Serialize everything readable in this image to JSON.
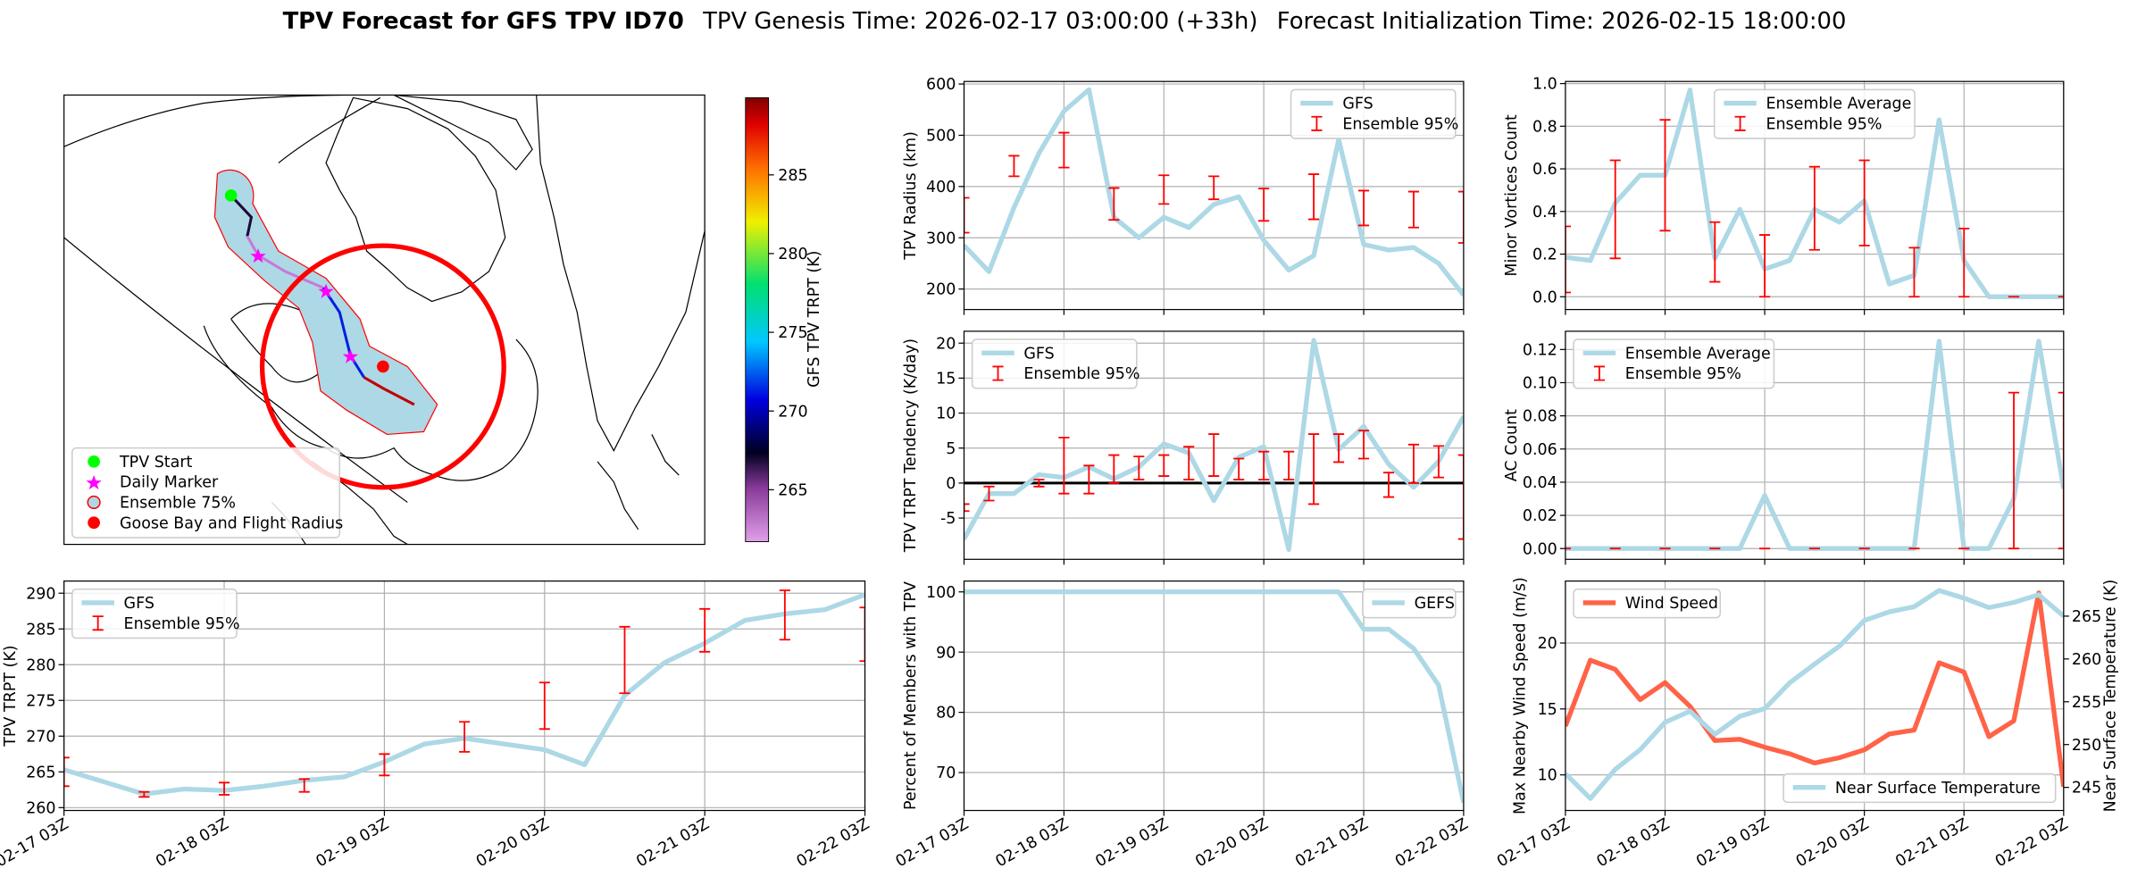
{
  "title": {
    "main": "TPV Forecast for GFS TPV ID70",
    "genesis": "TPV Genesis Time: 2026-02-17 03:00:00 (+33h)",
    "init": "Forecast Initialization Time: 2026-02-15 18:00:00"
  },
  "map": {
    "legend": [
      "TPV Start",
      "Daily Marker",
      "Ensemble 75%",
      "Goose Bay and Flight Radius"
    ],
    "colorbar": {
      "label": "GFS TPV TRPT (K)",
      "lim": [
        261.7,
        289.9
      ],
      "ticks": [
        265,
        270,
        275,
        280,
        285
      ]
    }
  },
  "chart_data": [
    {
      "type": "line",
      "ylabel": "TPV Radius (km)",
      "series": [
        {
          "name": "GFS",
          "color": "#add8e6",
          "values": [
            285,
            234,
            359,
            465,
            547,
            589,
            340,
            300,
            340,
            320,
            365,
            380,
            295,
            237,
            265,
            492,
            287,
            276,
            281,
            250,
            188
          ]
        }
      ],
      "errorbars": {
        "name": "Ensemble 95%",
        "color": "#ff0000",
        "low": [
          310,
          null,
          420,
          null,
          437,
          null,
          335,
          null,
          366,
          null,
          375,
          null,
          333,
          null,
          336,
          null,
          324,
          null,
          320,
          null,
          290
        ],
        "high": [
          378,
          null,
          460,
          null,
          505,
          null,
          397,
          null,
          422,
          null,
          420,
          null,
          396,
          null,
          424,
          null,
          392,
          null,
          390,
          null,
          390
        ]
      },
      "ylim": [
        160,
        605
      ],
      "yticks": [
        200,
        300,
        400,
        500,
        600
      ],
      "grid": true,
      "legend": "upper right"
    },
    {
      "type": "line",
      "ylabel": "Minor Vortices Count",
      "series": [
        {
          "name": "Ensemble Average",
          "color": "#add8e6",
          "values": [
            0.185,
            0.17,
            0.44,
            0.57,
            0.57,
            0.97,
            0.18,
            0.41,
            0.13,
            0.17,
            0.41,
            0.35,
            0.45,
            0.06,
            0.1,
            0.83,
            0.17,
            0,
            0,
            0,
            0
          ]
        }
      ],
      "errorbars": {
        "name": "Ensemble 95%",
        "color": "#ff0000",
        "low": [
          0.02,
          null,
          0.18,
          null,
          0.31,
          null,
          0.07,
          null,
          0,
          null,
          0.22,
          null,
          0.24,
          null,
          0,
          null,
          0,
          null,
          0,
          null,
          0
        ],
        "high": [
          0.33,
          null,
          0.64,
          null,
          0.83,
          null,
          0.35,
          null,
          0.29,
          null,
          0.61,
          null,
          0.64,
          null,
          0.23,
          null,
          0.32,
          null,
          0,
          null,
          0
        ]
      },
      "ylim": [
        -0.06,
        1.01
      ],
      "yticks": [
        {
          "value": 0,
          "label": "0.0"
        },
        0.2,
        0.4,
        0.6,
        0.8,
        {
          "value": 1,
          "label": "1.0"
        }
      ],
      "grid": true,
      "legend": "upper center"
    },
    {
      "type": "line",
      "ylabel": "TPV TRPT Tendency (K/day)",
      "series": [
        {
          "name": "GFS",
          "color": "#add8e6",
          "values": [
            -8,
            -1.5,
            -1.5,
            1.2,
            0.8,
            2.3,
            0.6,
            2.3,
            5.6,
            4.3,
            -2.5,
            3.7,
            5.2,
            -9.5,
            20.4,
            4.8,
            8.1,
            2.7,
            -0.6,
            3.1,
            9.5
          ]
        }
      ],
      "errorbars": {
        "name": "Ensemble 95%",
        "color": "#ff0000",
        "low": [
          -4,
          -2.5,
          null,
          -0.5,
          -1.5,
          -1.5,
          0,
          0.5,
          1,
          0.5,
          1,
          0.5,
          0.5,
          0.5,
          -3,
          3,
          3.5,
          -2,
          0,
          0.8,
          -8
        ],
        "high": [
          -3,
          -0.5,
          null,
          0.5,
          6.5,
          2.5,
          4,
          3.8,
          4,
          5.2,
          7,
          3.5,
          4.5,
          4.5,
          7,
          7,
          7.5,
          1.5,
          5.5,
          5.3,
          4
        ]
      },
      "hline": 0,
      "ylim": [
        -10.9,
        21.7
      ],
      "yticks": [
        -5,
        0,
        5,
        10,
        15,
        20
      ],
      "grid": true,
      "legend": "upper left"
    },
    {
      "type": "line",
      "ylabel": "AC Count",
      "series": [
        {
          "name": "Ensemble Average",
          "color": "#add8e6",
          "values": [
            0,
            0,
            0,
            0,
            0,
            0,
            0,
            0,
            0.032,
            0,
            0,
            0,
            0,
            0,
            0,
            0.125,
            0,
            0,
            0.03,
            0.125,
            0.036
          ]
        }
      ],
      "errorbars": {
        "name": "Ensemble 95%",
        "color": "#ff0000",
        "low": [
          0,
          null,
          0,
          null,
          0,
          null,
          0,
          null,
          0,
          null,
          0,
          null,
          0,
          null,
          0,
          null,
          0,
          null,
          0,
          null,
          0
        ],
        "high": [
          0,
          null,
          0,
          null,
          0,
          null,
          0,
          null,
          0,
          null,
          0,
          null,
          0,
          null,
          0,
          null,
          0,
          null,
          0.094,
          null,
          0.094
        ]
      },
      "ylim": [
        -0.0065,
        0.131
      ],
      "yticks": [
        {
          "value": 0,
          "label": "0.00"
        },
        {
          "value": 0.02,
          "label": "0.02"
        },
        {
          "value": 0.04,
          "label": "0.04"
        },
        {
          "value": 0.06,
          "label": "0.06"
        },
        {
          "value": 0.08,
          "label": "0.08"
        },
        {
          "value": 0.1,
          "label": "0.10"
        },
        {
          "value": 0.12,
          "label": "0.12"
        }
      ],
      "grid": true,
      "legend": "upper left"
    },
    {
      "type": "line",
      "ylabel": "TPV TRPT (K)",
      "categories": [
        "02-17 03Z",
        null,
        null,
        null,
        "02-18 03Z",
        null,
        null,
        null,
        "02-19 03Z",
        null,
        null,
        null,
        "02-20 03Z",
        null,
        null,
        null,
        "02-21 03Z",
        null,
        null,
        null,
        "02-22 03Z"
      ],
      "series": [
        {
          "name": "GFS",
          "color": "#add8e6",
          "values": [
            265.3,
            263.6,
            261.9,
            262.6,
            262.4,
            263,
            263.8,
            264.3,
            266.4,
            268.9,
            269.7,
            268.9,
            268.1,
            266,
            275.7,
            280.3,
            283,
            286.2,
            287.1,
            287.7,
            289.8
          ]
        }
      ],
      "errorbars": {
        "name": "Ensemble 95%",
        "color": "#ff0000",
        "low": [
          263,
          null,
          261.5,
          null,
          261.8,
          null,
          262.2,
          null,
          264.5,
          null,
          267.8,
          null,
          271,
          null,
          276,
          null,
          281.8,
          null,
          283.5,
          null,
          280.5
        ],
        "high": [
          267,
          null,
          262.2,
          null,
          263.5,
          null,
          264,
          null,
          267.5,
          null,
          272,
          null,
          277.5,
          null,
          285.3,
          null,
          287.8,
          null,
          290.4,
          null,
          288
        ]
      },
      "ylim": [
        259.6,
        291.7
      ],
      "yticks": [
        260,
        265,
        270,
        275,
        280,
        285,
        290
      ],
      "grid": true,
      "legend": "upper left"
    },
    {
      "type": "line",
      "ylabel": "Percent of Members with TPV",
      "categories": [
        "02-17 03Z",
        null,
        null,
        null,
        "02-18 03Z",
        null,
        null,
        null,
        "02-19 03Z",
        null,
        null,
        null,
        "02-20 03Z",
        null,
        null,
        null,
        "02-21 03Z",
        null,
        null,
        null,
        "02-22 03Z"
      ],
      "series": [
        {
          "name": "GEFS",
          "color": "#add8e6",
          "values": [
            100,
            100,
            100,
            100,
            100,
            100,
            100,
            100,
            100,
            100,
            100,
            100,
            100,
            100,
            100,
            100,
            93.8,
            93.8,
            90.6,
            84.5,
            65
          ]
        }
      ],
      "ylim": [
        63.7,
        101.8
      ],
      "yticks": [
        70,
        80,
        90,
        100
      ],
      "grid": true,
      "legend": "upper right"
    },
    {
      "type": "line",
      "ylabel": "Max Nearby Wind Speed (m/s)",
      "y2label": "Near Surface Temperature (K)",
      "ylabel_color": "#ff6347",
      "y2label_color": "#4169e1",
      "categories": [
        "02-17 03Z",
        null,
        null,
        null,
        "02-18 03Z",
        null,
        null,
        null,
        "02-19 03Z",
        null,
        null,
        null,
        "02-20 03Z",
        null,
        null,
        null,
        "02-21 03Z",
        null,
        null,
        null,
        "02-22 03Z"
      ],
      "series": [
        {
          "name": "Wind Speed",
          "color": "#ff6347",
          "legend": "upper left",
          "values": [
            13.7,
            18.7,
            18,
            15.7,
            17,
            15.2,
            12.6,
            12.7,
            12.1,
            11.6,
            10.9,
            11.3,
            11.9,
            13.1,
            13.4,
            18.5,
            17.8,
            12.9,
            14.1,
            23.8,
            9.1
          ]
        },
        {
          "name": "Near Surface Temperature",
          "color": "#add8e6",
          "axis": "y2",
          "legend": "lower right",
          "values": [
            246.6,
            243.7,
            247.1,
            249.4,
            252.6,
            253.9,
            251.2,
            253.3,
            254.2,
            257.2,
            259.4,
            261.5,
            264.5,
            265.5,
            266.1,
            268,
            267.1,
            266,
            266.6,
            267.5,
            265
          ]
        }
      ],
      "ylim": [
        7.3,
        24.7
      ],
      "yticks": [
        10,
        15,
        20
      ],
      "y2lim": [
        242.3,
        269.1
      ],
      "y2ticks": [
        245,
        250,
        255,
        260,
        265
      ],
      "grid": true
    }
  ]
}
